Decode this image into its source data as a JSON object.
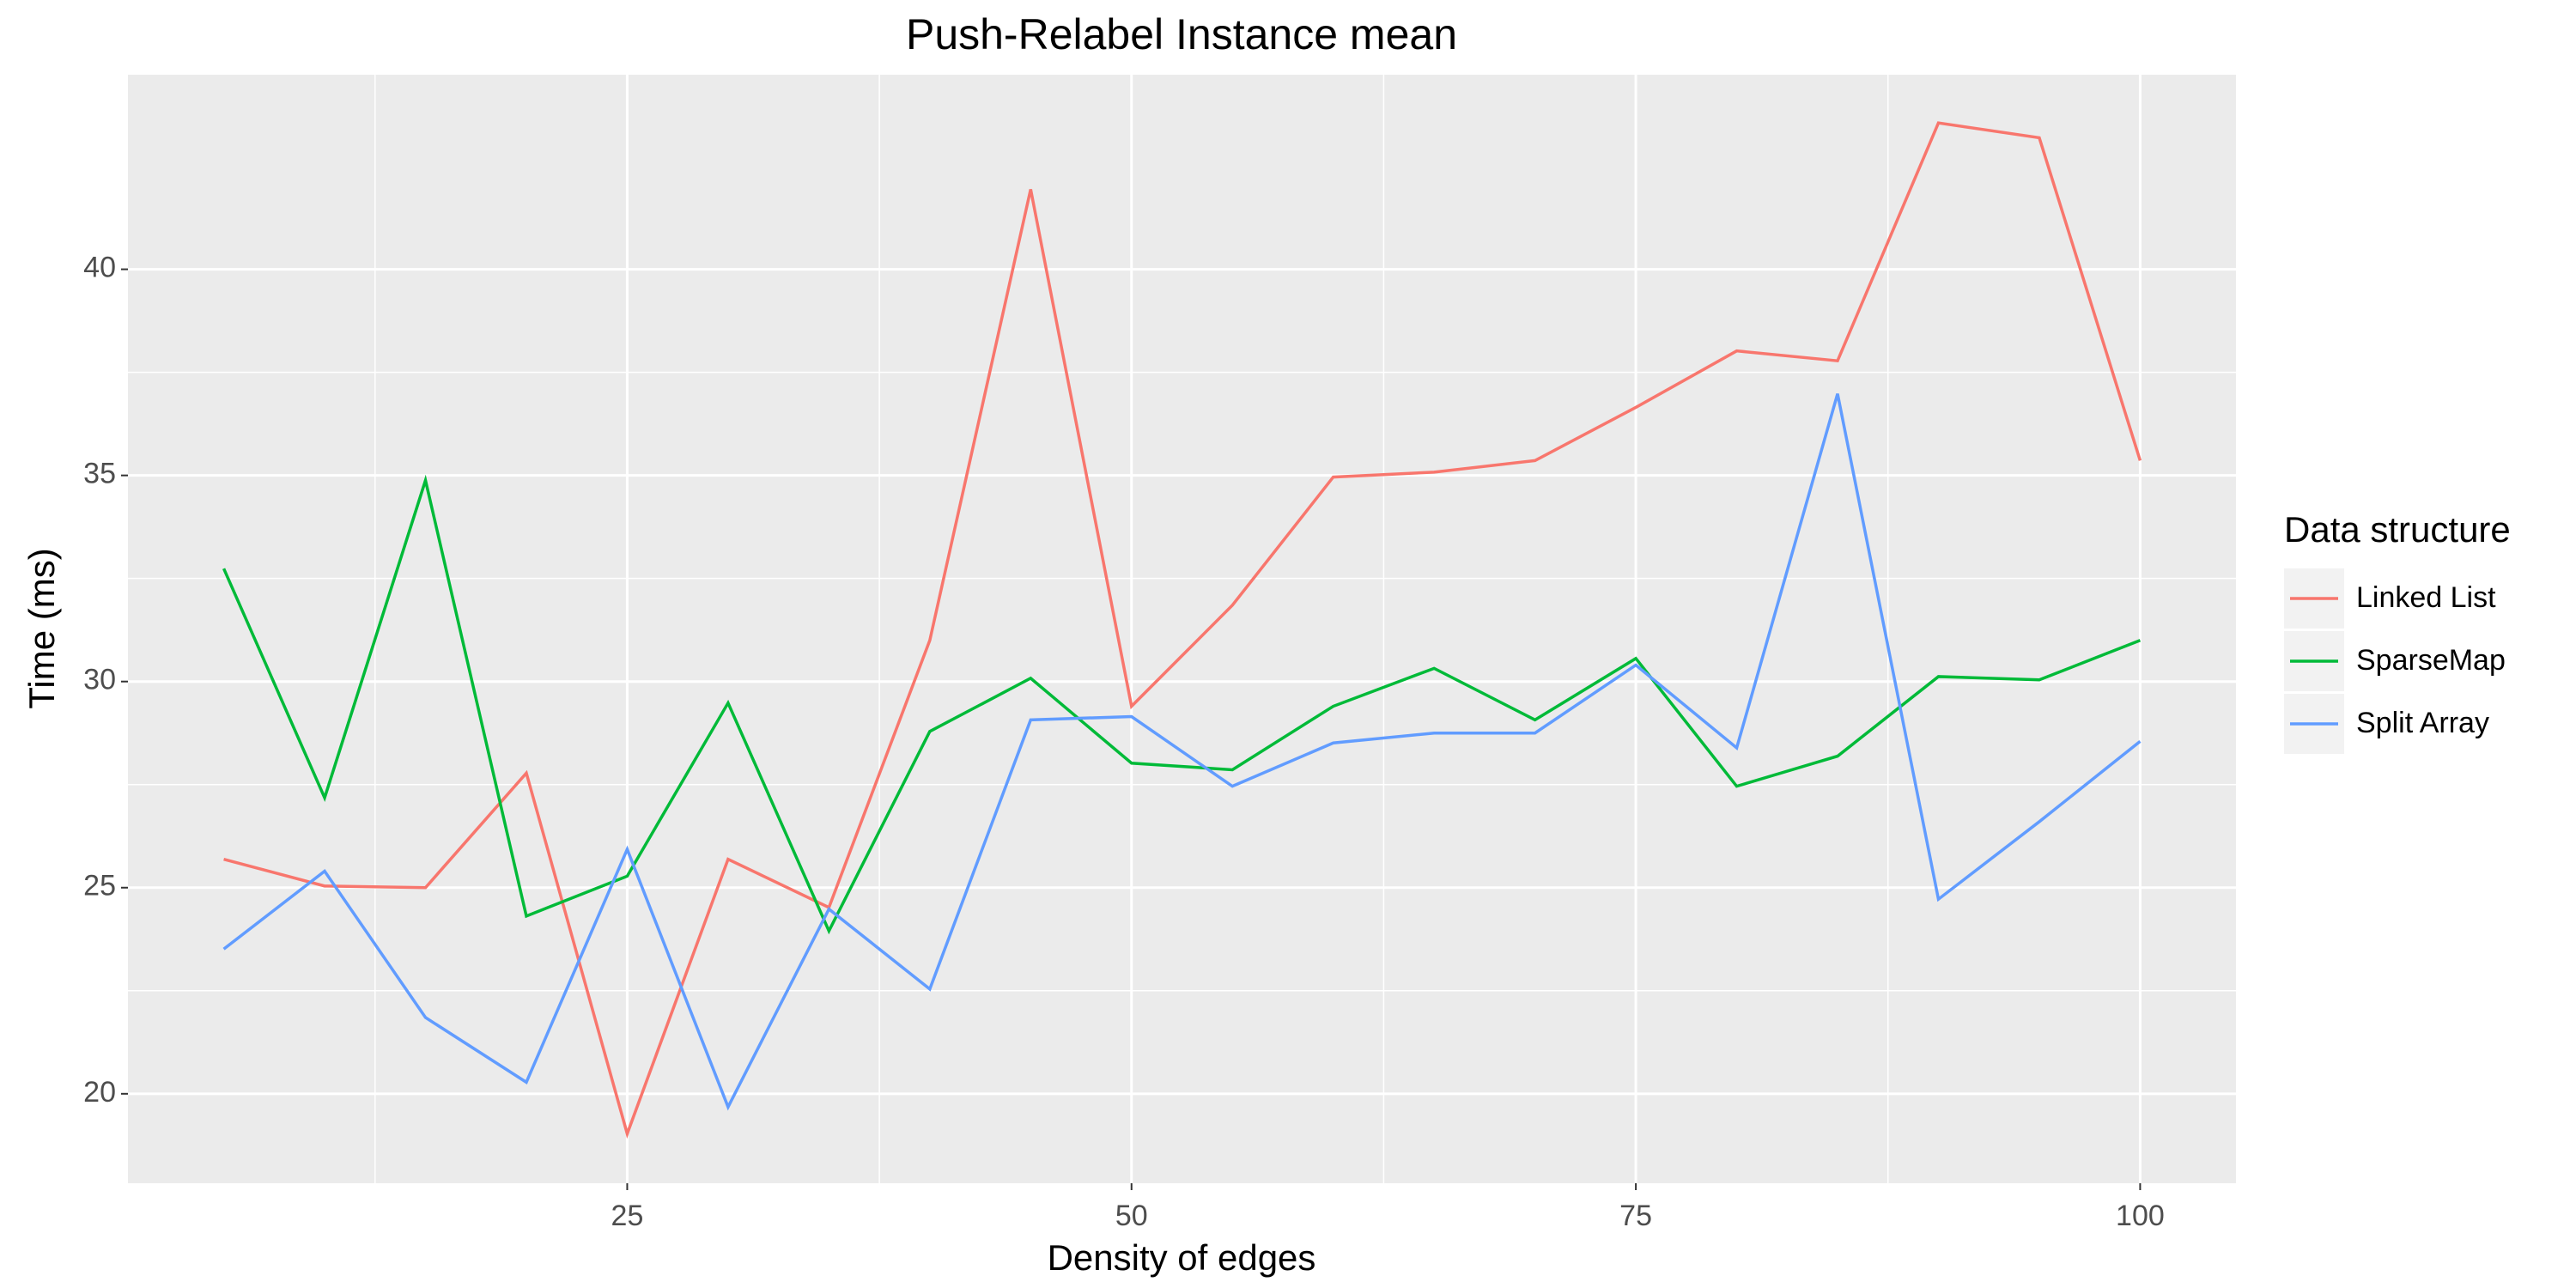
{
  "chart_data": {
    "type": "line",
    "title": "Push-Relabel Instance mean",
    "x_label": "Density of edges",
    "y_label": "Time (ms)",
    "legend_title": "Data structure",
    "x": [
      5,
      10,
      15,
      20,
      25,
      30,
      35,
      40,
      45,
      50,
      55,
      60,
      65,
      70,
      75,
      80,
      85,
      90,
      95,
      100
    ],
    "series": [
      {
        "name": "Linked List",
        "color": "#f8766d",
        "values": [
          25.69,
          25.04,
          25.0,
          27.78,
          19.03,
          25.69,
          24.52,
          31.0,
          41.94,
          29.4,
          31.85,
          34.96,
          35.08,
          35.36,
          36.65,
          38.02,
          37.78,
          43.55,
          43.19,
          35.36
        ]
      },
      {
        "name": "SparseMap",
        "color": "#00ba38",
        "values": [
          32.74,
          27.18,
          34.88,
          24.31,
          25.28,
          29.48,
          23.95,
          28.79,
          30.08,
          28.02,
          27.86,
          29.4,
          30.32,
          29.07,
          30.56,
          27.46,
          28.19,
          30.12,
          30.04,
          31.0
        ]
      },
      {
        "name": "Split Array",
        "color": "#619cff",
        "values": [
          23.51,
          25.4,
          21.85,
          20.28,
          25.93,
          19.68,
          24.48,
          22.54,
          29.07,
          29.15,
          27.46,
          28.51,
          28.75,
          28.75,
          30.4,
          28.39,
          36.98,
          24.72,
          26.6,
          28.55
        ]
      }
    ],
    "xlim": [
      0.25,
      104.75
    ],
    "xticks": [
      25,
      50,
      75,
      100
    ],
    "ylim": [
      17.83,
      44.72
    ],
    "yticks": [
      20,
      25,
      30,
      35,
      40
    ],
    "grid": true,
    "legend": "right"
  }
}
